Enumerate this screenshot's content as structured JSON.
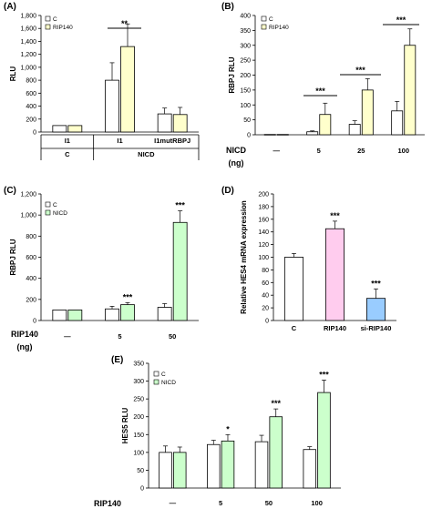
{
  "chart_data": [
    {
      "panel": "(A)",
      "type": "bar",
      "ylabel": "RLU",
      "ylim": [
        0,
        1800
      ],
      "yticks": [
        0,
        200,
        400,
        600,
        800,
        1000,
        1200,
        1400,
        1600,
        1800
      ],
      "categories": [
        "I1",
        "I1",
        "I1mutRBPJ"
      ],
      "groups": [
        {
          "label": "C",
          "categories": [
            "I1"
          ]
        },
        {
          "label": "NICD",
          "categories": [
            "I1",
            "I1mutRBPJ"
          ]
        }
      ],
      "series": [
        {
          "name": "C",
          "color": "#ffffff",
          "values": [
            100,
            800,
            280
          ],
          "errors": [
            0,
            270,
            90
          ]
        },
        {
          "name": "RIP140",
          "color": "#ffffcc",
          "values": [
            100,
            1320,
            270
          ],
          "errors": [
            0,
            350,
            110
          ]
        }
      ],
      "annotations": [
        {
          "text": "**",
          "category": 1
        }
      ]
    },
    {
      "panel": "(B)",
      "type": "bar",
      "ylabel": "RBPJ RLU",
      "ylim": [
        0,
        400
      ],
      "yticks": [
        0,
        50,
        100,
        150,
        200,
        250,
        300,
        350,
        400
      ],
      "condition_label": "NICD",
      "condition_unit": "(ng)",
      "categories": [
        "—",
        "5",
        "25",
        "100"
      ],
      "series": [
        {
          "name": "C",
          "color": "#ffffff",
          "values": [
            1,
            10,
            35,
            80
          ],
          "errors": [
            0,
            3,
            12,
            32
          ]
        },
        {
          "name": "RIP140",
          "color": "#ffffcc",
          "values": [
            1,
            68,
            150,
            300
          ],
          "errors": [
            0,
            38,
            38,
            55
          ]
        }
      ],
      "annotations": [
        {
          "text": "***",
          "category": 1
        },
        {
          "text": "***",
          "category": 2
        },
        {
          "text": "***",
          "category": 3
        }
      ]
    },
    {
      "panel": "(C)",
      "type": "bar",
      "ylabel": "RBPJ RLU",
      "ylim": [
        0,
        1200
      ],
      "yticks": [
        0,
        200,
        400,
        600,
        800,
        1000,
        1200
      ],
      "condition_label": "RIP140",
      "condition_unit": "(ng)",
      "categories": [
        "—",
        "5",
        "50"
      ],
      "series": [
        {
          "name": "C",
          "color": "#ffffff",
          "values": [
            100,
            110,
            125
          ],
          "errors": [
            0,
            25,
            35
          ]
        },
        {
          "name": "NICD",
          "color": "#ccffcc",
          "values": [
            100,
            150,
            930
          ],
          "errors": [
            0,
            20,
            110
          ]
        }
      ],
      "annotations": [
        {
          "text": "***",
          "category": 1
        },
        {
          "text": "***",
          "category": 2
        }
      ]
    },
    {
      "panel": "(D)",
      "type": "bar",
      "ylabel": "Relative HES4 mRNA expression",
      "ylim": [
        0,
        200
      ],
      "yticks": [
        0,
        20,
        40,
        60,
        80,
        100,
        120,
        140,
        160,
        180,
        200
      ],
      "categories": [
        "C",
        "RIP140",
        "si-RIP140"
      ],
      "values": [
        100,
        145,
        35
      ],
      "errors": [
        6,
        12,
        15
      ],
      "colors": [
        "#ffffff",
        "#ffccee",
        "#99ccff"
      ],
      "annotations": [
        {
          "text": "***",
          "category": 1
        },
        {
          "text": "***",
          "category": 2
        }
      ]
    },
    {
      "panel": "(E)",
      "type": "bar",
      "ylabel": "HES5 RLU",
      "ylim": [
        0,
        350
      ],
      "yticks": [
        0,
        50,
        100,
        150,
        200,
        250,
        300,
        350
      ],
      "condition_label": "RIP140",
      "categories": [
        "—",
        "5",
        "50",
        "100"
      ],
      "series": [
        {
          "name": "C",
          "color": "#ffffff",
          "values": [
            100,
            122,
            130,
            108
          ],
          "errors": [
            18,
            12,
            18,
            8
          ]
        },
        {
          "name": "NICD",
          "color": "#ccffcc",
          "values": [
            100,
            132,
            200,
            268
          ],
          "errors": [
            15,
            18,
            22,
            35
          ]
        }
      ],
      "annotations": [
        {
          "text": "*",
          "category": 1
        },
        {
          "text": "***",
          "category": 2
        },
        {
          "text": "***",
          "category": 3
        }
      ]
    }
  ]
}
